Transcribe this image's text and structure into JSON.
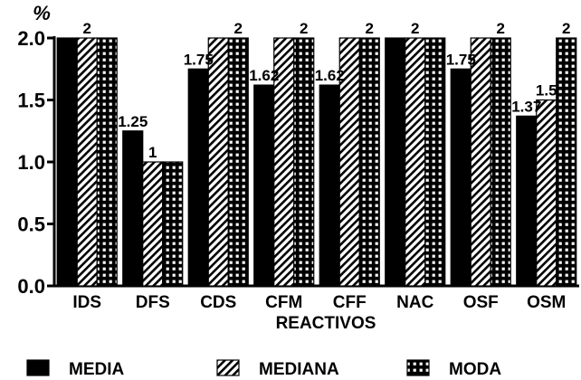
{
  "chart_data": {
    "type": "bar",
    "unit_label": "%",
    "xlabel": "REACTIVOS",
    "ylabel": "",
    "title": "",
    "ylim": [
      0,
      2.0
    ],
    "yticks": [
      "0.0",
      "0.5",
      "1.0",
      "1.5",
      "2.0"
    ],
    "grid": false,
    "legend_position": "bottom",
    "categories": [
      "IDS",
      "DFS",
      "CDS",
      "CFM",
      "CFF",
      "NAC",
      "OSF",
      "OSM"
    ],
    "series": [
      {
        "name": "MEDIA",
        "pattern": "solid",
        "values": [
          2,
          1.25,
          1.75,
          1.62,
          1.62,
          2,
          1.75,
          1.37
        ],
        "labels": [
          "",
          "1.25",
          "1.75",
          "1.62",
          "1.62",
          "",
          "1.75",
          "1.37"
        ]
      },
      {
        "name": "MEDIANA",
        "pattern": "diagonal-hatch",
        "values": [
          2,
          1,
          2,
          2,
          2,
          2,
          2,
          1.5
        ],
        "labels": [
          "2",
          "1",
          "",
          "",
          "",
          "2",
          "",
          "1.5"
        ]
      },
      {
        "name": "MODA",
        "pattern": "grid-dots",
        "values": [
          2,
          1,
          2,
          2,
          2,
          2,
          2,
          2
        ],
        "labels": [
          "",
          "",
          "2",
          "2",
          "2",
          "",
          "2",
          "2"
        ]
      }
    ],
    "colors": {
      "ink": "#000000",
      "paper": "#ffffff"
    }
  }
}
